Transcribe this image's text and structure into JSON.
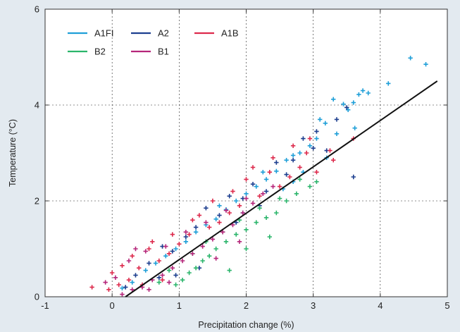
{
  "chart_data": {
    "type": "scatter",
    "title": "",
    "xlabel": "Precipitation change (%)",
    "ylabel": "Temperature (°C)",
    "xlim": [
      -1,
      5
    ],
    "ylim": [
      0,
      6
    ],
    "xticks": [
      -1,
      0,
      1,
      2,
      3,
      4,
      5
    ],
    "yticks": [
      0,
      2,
      4,
      6
    ],
    "grid": true,
    "legend_position": "top-left",
    "marker": "+",
    "series": [
      {
        "name": "A1FI",
        "color": "#1f9fd8",
        "points": [
          [
            4.45,
            4.98
          ],
          [
            4.68,
            4.85
          ],
          [
            4.12,
            4.45
          ],
          [
            3.82,
            4.25
          ],
          [
            3.74,
            4.3
          ],
          [
            3.68,
            4.22
          ],
          [
            3.6,
            4.05
          ],
          [
            3.52,
            3.9
          ],
          [
            3.45,
            4.02
          ],
          [
            3.3,
            4.12
          ],
          [
            3.1,
            3.7
          ],
          [
            3.18,
            3.62
          ],
          [
            3.62,
            3.52
          ],
          [
            3.05,
            3.3
          ],
          [
            2.95,
            3.15
          ],
          [
            2.8,
            3.0
          ],
          [
            2.7,
            2.95
          ],
          [
            2.6,
            2.85
          ],
          [
            2.45,
            2.62
          ],
          [
            2.3,
            2.45
          ],
          [
            2.15,
            2.3
          ],
          [
            2.0,
            2.15
          ],
          [
            1.85,
            2.0
          ],
          [
            1.7,
            1.82
          ],
          [
            1.55,
            1.62
          ],
          [
            1.4,
            1.5
          ],
          [
            1.25,
            1.35
          ],
          [
            1.1,
            1.15
          ],
          [
            0.95,
            1.0
          ],
          [
            0.8,
            0.85
          ],
          [
            0.65,
            0.7
          ],
          [
            0.5,
            0.55
          ],
          [
            0.3,
            0.3
          ],
          [
            0.15,
            0.18
          ],
          [
            2.55,
            2.25
          ],
          [
            2.85,
            2.6
          ],
          [
            3.2,
            2.9
          ],
          [
            1.95,
            1.75
          ],
          [
            1.6,
            1.9
          ],
          [
            2.25,
            2.6
          ],
          [
            3.35,
            3.4
          ],
          [
            2.7,
            2.4
          ]
        ]
      },
      {
        "name": "A2",
        "color": "#1d3f8f",
        "points": [
          [
            3.05,
            3.45
          ],
          [
            3.35,
            3.7
          ],
          [
            3.5,
            3.95
          ],
          [
            3.6,
            2.5
          ],
          [
            3.0,
            3.1
          ],
          [
            2.85,
            3.3
          ],
          [
            2.7,
            2.85
          ],
          [
            2.6,
            2.55
          ],
          [
            2.45,
            2.8
          ],
          [
            2.3,
            2.2
          ],
          [
            2.1,
            2.35
          ],
          [
            1.95,
            2.05
          ],
          [
            1.75,
            2.1
          ],
          [
            1.6,
            1.7
          ],
          [
            1.4,
            1.85
          ],
          [
            1.25,
            1.45
          ],
          [
            1.1,
            1.25
          ],
          [
            0.9,
            0.95
          ],
          [
            0.75,
            1.05
          ],
          [
            0.55,
            0.7
          ],
          [
            0.35,
            0.45
          ],
          [
            0.2,
            0.2
          ],
          [
            1.3,
            0.6
          ],
          [
            0.95,
            0.45
          ],
          [
            0.7,
            0.4
          ],
          [
            2.2,
            1.9
          ],
          [
            3.2,
            3.05
          ],
          [
            1.85,
            1.55
          ]
        ]
      },
      {
        "name": "A1B",
        "color": "#dd2a4c",
        "points": [
          [
            3.6,
            3.3
          ],
          [
            3.25,
            3.05
          ],
          [
            3.3,
            2.85
          ],
          [
            3.05,
            2.6
          ],
          [
            2.9,
            3.0
          ],
          [
            2.8,
            2.7
          ],
          [
            2.65,
            2.5
          ],
          [
            2.5,
            2.3
          ],
          [
            2.35,
            2.6
          ],
          [
            2.2,
            2.1
          ],
          [
            2.0,
            2.45
          ],
          [
            1.9,
            1.9
          ],
          [
            1.75,
            1.75
          ],
          [
            1.6,
            1.55
          ],
          [
            1.45,
            1.45
          ],
          [
            1.3,
            1.7
          ],
          [
            1.15,
            1.3
          ],
          [
            1.0,
            1.1
          ],
          [
            0.85,
            0.9
          ],
          [
            0.7,
            0.75
          ],
          [
            0.55,
            1.0
          ],
          [
            0.4,
            0.6
          ],
          [
            0.25,
            0.35
          ],
          [
            0.1,
            0.25
          ],
          [
            -0.05,
            0.15
          ],
          [
            -0.3,
            0.2
          ],
          [
            0.0,
            0.5
          ],
          [
            0.3,
            0.85
          ],
          [
            0.6,
            1.15
          ],
          [
            0.9,
            1.3
          ],
          [
            1.2,
            1.6
          ],
          [
            1.5,
            2.0
          ],
          [
            1.8,
            2.2
          ],
          [
            2.1,
            2.7
          ],
          [
            2.4,
            2.9
          ],
          [
            2.7,
            3.15
          ],
          [
            2.95,
            3.3
          ],
          [
            0.15,
            0.65
          ],
          [
            0.45,
            0.25
          ],
          [
            0.75,
            0.35
          ]
        ]
      },
      {
        "name": "B2",
        "color": "#2bb56b",
        "points": [
          [
            3.05,
            2.4
          ],
          [
            2.95,
            2.3
          ],
          [
            2.75,
            2.15
          ],
          [
            2.6,
            2.0
          ],
          [
            2.45,
            1.75
          ],
          [
            2.3,
            1.65
          ],
          [
            2.15,
            1.55
          ],
          [
            2.0,
            1.4
          ],
          [
            1.85,
            1.3
          ],
          [
            1.7,
            1.15
          ],
          [
            1.55,
            1.0
          ],
          [
            1.45,
            0.85
          ],
          [
            1.35,
            0.75
          ],
          [
            1.25,
            0.6
          ],
          [
            1.15,
            0.5
          ],
          [
            1.05,
            0.35
          ],
          [
            0.95,
            0.25
          ],
          [
            2.2,
            1.85
          ],
          [
            2.5,
            2.05
          ],
          [
            2.8,
            2.45
          ],
          [
            1.9,
            1.6
          ],
          [
            1.65,
            1.35
          ],
          [
            1.4,
            1.15
          ],
          [
            1.2,
            0.9
          ],
          [
            0.85,
            0.55
          ],
          [
            0.7,
            0.3
          ],
          [
            1.75,
            0.55
          ],
          [
            2.0,
            1.0
          ],
          [
            2.35,
            1.25
          ]
        ]
      },
      {
        "name": "B1",
        "color": "#b5267a",
        "points": [
          [
            2.25,
            2.15
          ],
          [
            2.1,
            1.95
          ],
          [
            1.95,
            1.75
          ],
          [
            1.8,
            1.5
          ],
          [
            1.65,
            1.35
          ],
          [
            1.5,
            1.2
          ],
          [
            1.35,
            1.05
          ],
          [
            1.2,
            0.9
          ],
          [
            1.05,
            0.75
          ],
          [
            0.9,
            0.6
          ],
          [
            0.75,
            0.45
          ],
          [
            0.6,
            0.35
          ],
          [
            0.45,
            0.2
          ],
          [
            0.3,
            0.15
          ],
          [
            0.15,
            0.05
          ],
          [
            0.05,
            0.4
          ],
          [
            0.25,
            0.75
          ],
          [
            0.5,
            0.95
          ],
          [
            0.8,
            1.05
          ],
          [
            1.1,
            1.35
          ],
          [
            1.4,
            1.55
          ],
          [
            1.7,
            1.8
          ],
          [
            2.0,
            2.05
          ],
          [
            -0.1,
            0.3
          ],
          [
            0.55,
            0.15
          ],
          [
            0.85,
            0.3
          ],
          [
            1.55,
            0.8
          ],
          [
            1.9,
            1.15
          ],
          [
            2.4,
            2.3
          ],
          [
            0.35,
            1.0
          ]
        ]
      }
    ],
    "trend_line": {
      "color": "#111111",
      "x": [
        0.2,
        4.85
      ],
      "y": [
        0.0,
        4.5
      ]
    }
  }
}
